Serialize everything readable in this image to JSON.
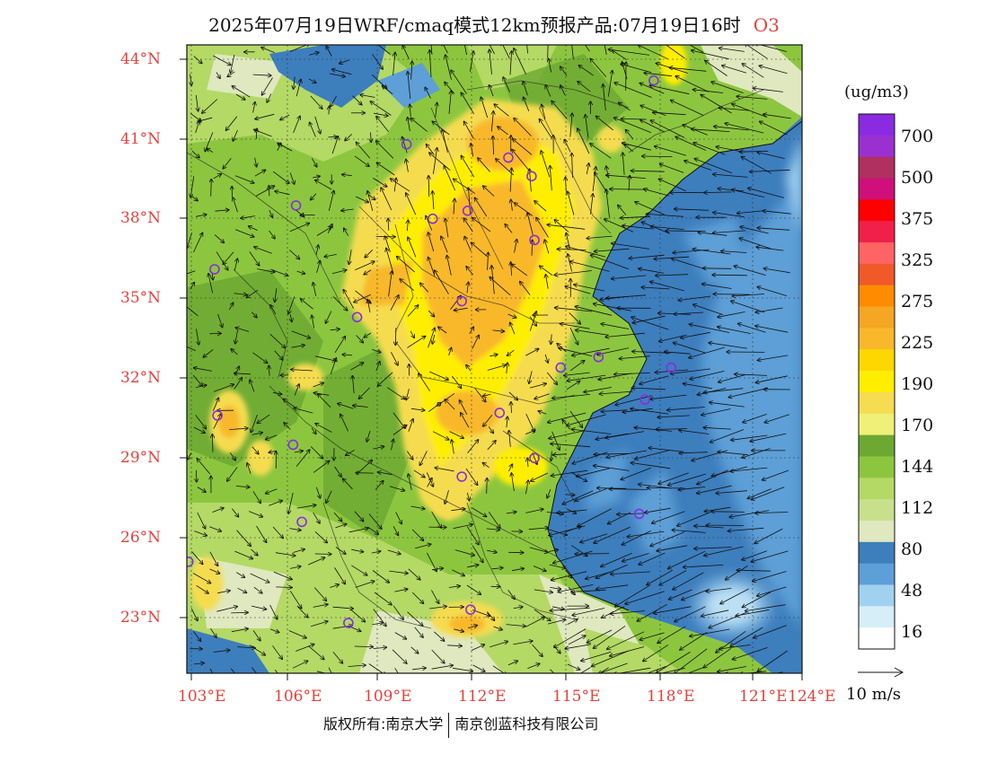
{
  "title": {
    "main": "2025年07月19日WRF/cmaq模式12km预报产品:07月19日16时",
    "pollutant": "O3"
  },
  "lat_labels": [
    "44°N",
    "41°N",
    "38°N",
    "35°N",
    "32°N",
    "29°N",
    "26°N",
    "23°N"
  ],
  "lon_labels": [
    "103°E",
    "106°E",
    "109°E",
    "112°E",
    "115°E",
    "118°E",
    "121°E",
    "124°E"
  ],
  "colorbar": {
    "units": "(ug/m3)",
    "labels": [
      "700",
      "500",
      "375",
      "325",
      "275",
      "225",
      "190",
      "170",
      "144",
      "112",
      "80",
      "48",
      "16"
    ],
    "colors": [
      "#8a2be2",
      "#9b30d0",
      "#b03060",
      "#d0107a",
      "#ff0000",
      "#f0204a",
      "#ff6464",
      "#f05a28",
      "#ff8c00",
      "#f5a623",
      "#f8b82a",
      "#ffd700",
      "#ffee00",
      "#f5dc50",
      "#f0f078",
      "#6ca832",
      "#8cc63f",
      "#b4d965",
      "#c8e08c",
      "#dfe8be",
      "#3d7ebd",
      "#5d9fd6",
      "#a0d2f0",
      "#d6eef8",
      "#ffffff"
    ]
  },
  "wind_reference": {
    "label": "10 m/s"
  },
  "copyright": {
    "left": "版权所有:南京大学",
    "right": "南京创蓝科技有限公司"
  },
  "map": {
    "lon_range": [
      103,
      124
    ],
    "lat_range": [
      21,
      44.5
    ],
    "field": "O3 surface concentration with 10 m wind vectors",
    "sites": [
      {
        "lon": 118.9,
        "lat": 43.2
      },
      {
        "lon": 110.4,
        "lat": 40.8
      },
      {
        "lon": 113.9,
        "lat": 40.3
      },
      {
        "lon": 114.7,
        "lat": 39.6
      },
      {
        "lon": 106.6,
        "lat": 38.5
      },
      {
        "lon": 111.3,
        "lat": 38.0
      },
      {
        "lon": 112.5,
        "lat": 38.3
      },
      {
        "lon": 114.8,
        "lat": 37.2
      },
      {
        "lon": 103.8,
        "lat": 36.1
      },
      {
        "lon": 112.3,
        "lat": 34.9
      },
      {
        "lon": 108.7,
        "lat": 34.3
      },
      {
        "lon": 117.0,
        "lat": 32.8
      },
      {
        "lon": 115.7,
        "lat": 32.4
      },
      {
        "lon": 119.5,
        "lat": 32.4
      },
      {
        "lon": 118.6,
        "lat": 31.2
      },
      {
        "lon": 103.9,
        "lat": 30.6
      },
      {
        "lon": 113.6,
        "lat": 30.7
      },
      {
        "lon": 106.5,
        "lat": 29.5
      },
      {
        "lon": 114.8,
        "lat": 29.0
      },
      {
        "lon": 112.3,
        "lat": 28.3
      },
      {
        "lon": 118.4,
        "lat": 26.9
      },
      {
        "lon": 106.8,
        "lat": 26.6
      },
      {
        "lon": 102.9,
        "lat": 25.1
      },
      {
        "lon": 108.4,
        "lat": 22.8
      },
      {
        "lon": 112.6,
        "lat": 23.3
      }
    ]
  }
}
